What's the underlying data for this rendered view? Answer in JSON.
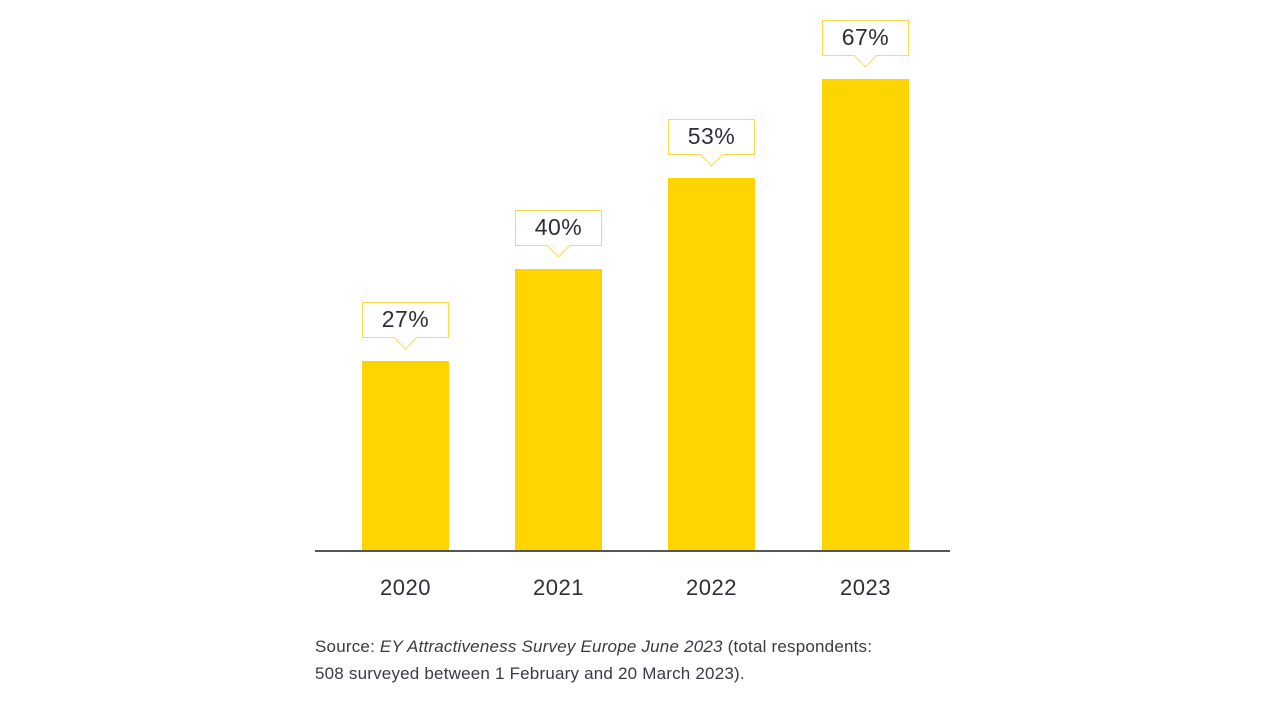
{
  "chart_data": {
    "type": "bar",
    "title": "",
    "xlabel": "",
    "ylabel": "",
    "categories": [
      "2020",
      "2021",
      "2022",
      "2023"
    ],
    "values": [
      27,
      40,
      53,
      67
    ],
    "value_labels": [
      "27%",
      "40%",
      "53%",
      "67%"
    ],
    "unit": "%",
    "ylim": [
      0,
      70
    ],
    "grid": false,
    "legend": false,
    "bar_color": "#FFD500",
    "callout_border_color": "#FFD84D",
    "axis_line_color": "#55565A",
    "label_text_color": "#2E2E38"
  },
  "source": {
    "prefix": "Source: ",
    "citation": "EY Attractiveness Survey Europe June 2023",
    "suffix_line1": " (total respondents:",
    "line2": "508 surveyed between 1 February and 20 March 2023)."
  }
}
